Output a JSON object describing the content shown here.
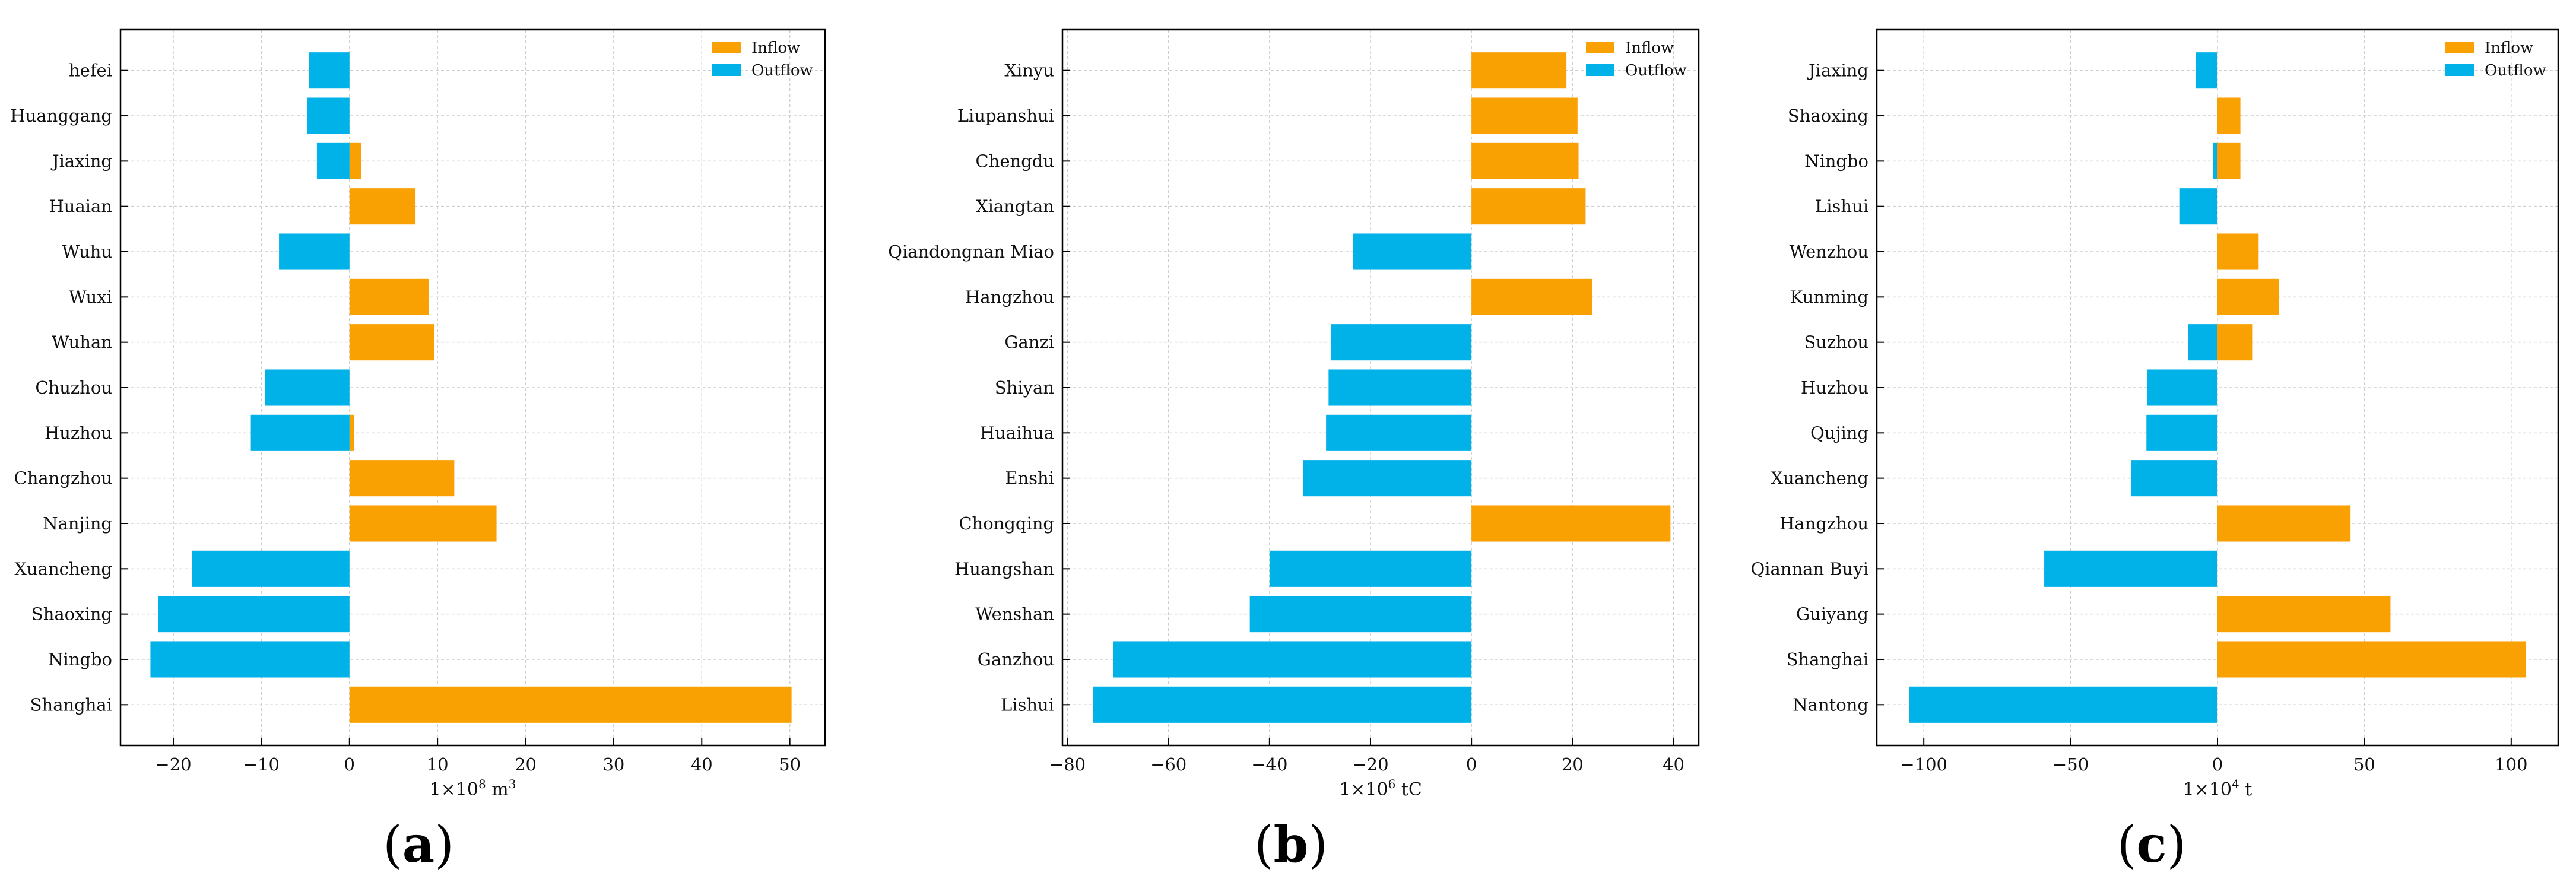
{
  "colors": {
    "inflow": "#f9a102",
    "outflow": "#00b2e8"
  },
  "chart_data": [
    {
      "panel": "a",
      "panel_label": "a",
      "type": "bar",
      "orientation": "horizontal",
      "xlabel": "1×10",
      "xlabel_sup": "8",
      "xlabel_unit": " m",
      "xlabel_unit_sup": "3",
      "xlim": [
        -26,
        54
      ],
      "xticks": [
        -20,
        -10,
        0,
        10,
        20,
        30,
        40,
        50
      ],
      "legend": [
        "Inflow",
        "Outflow"
      ],
      "legend_position": "top-right",
      "grid": true,
      "categories": [
        "hefei",
        "Huanggang",
        "Jiaxing",
        "Huaian",
        "Wuhu",
        "Wuxi",
        "Wuhan",
        "Chuzhou",
        "Huzhou",
        "Changzhou",
        "Nanjing",
        "Xuancheng",
        "Shaoxing",
        "Ningbo",
        "Shanghai"
      ],
      "series": [
        {
          "name": "Inflow",
          "values": [
            0,
            0,
            1.3,
            7.5,
            0,
            9,
            9.6,
            0,
            0.5,
            11.9,
            16.7,
            0,
            0,
            0,
            50.2
          ]
        },
        {
          "name": "Outflow",
          "values": [
            -4.6,
            -4.8,
            -3.7,
            0,
            -8,
            0,
            0,
            -9.6,
            -11.2,
            0,
            0,
            -17.9,
            -21.7,
            -22.6,
            0
          ]
        }
      ]
    },
    {
      "panel": "b",
      "panel_label": "b",
      "type": "bar",
      "orientation": "horizontal",
      "xlabel": "1×10",
      "xlabel_sup": "6",
      "xlabel_unit": " tC",
      "xlabel_unit_sup": "",
      "xlim": [
        -81,
        45
      ],
      "xticks": [
        -80,
        -60,
        -40,
        -20,
        0,
        20,
        40
      ],
      "legend": [
        "Inflow",
        "Outflow"
      ],
      "legend_position": "top-right",
      "grid": true,
      "categories": [
        "Xinyu",
        "Liupanshui",
        "Chengdu",
        "Xiangtan",
        "Qiandongnan Miao",
        "Hangzhou",
        "Ganzi",
        "Shiyan",
        "Huaihua",
        "Enshi",
        "Chongqing",
        "Huangshan",
        "Wenshan",
        "Ganzhou",
        "Lishui"
      ],
      "series": [
        {
          "name": "Inflow",
          "values": [
            18.8,
            21,
            21.2,
            22.6,
            0,
            23.9,
            0,
            0,
            0,
            0,
            39.4,
            0,
            0,
            0,
            0
          ]
        },
        {
          "name": "Outflow",
          "values": [
            0,
            0,
            0,
            0,
            -23.5,
            0,
            -27.8,
            -28.3,
            -28.8,
            -33.4,
            0,
            -40,
            -43.9,
            -71,
            -75
          ]
        }
      ]
    },
    {
      "panel": "c",
      "panel_label": "c",
      "type": "bar",
      "orientation": "horizontal",
      "xlabel": "1×10",
      "xlabel_sup": "4",
      "xlabel_unit": " t",
      "xlabel_unit_sup": "",
      "xlim": [
        -116,
        116
      ],
      "xticks": [
        -100,
        -50,
        0,
        50,
        100
      ],
      "legend": [
        "Inflow",
        "Outflow"
      ],
      "legend_position": "top-right",
      "grid": true,
      "categories": [
        "Jiaxing",
        "Shaoxing",
        "Ningbo",
        "Lishui",
        "Wenzhou",
        "Kunming",
        "Suzhou",
        "Huzhou",
        "Qujing",
        "Xuancheng",
        "Hangzhou",
        "Qiannan Buyi",
        "Guiyang",
        "Shanghai",
        "Nantong"
      ],
      "series": [
        {
          "name": "Inflow",
          "values": [
            0,
            7.8,
            7.8,
            0,
            14,
            21,
            11.8,
            0,
            0,
            0,
            45.3,
            0,
            58.9,
            105,
            0
          ]
        },
        {
          "name": "Outflow",
          "values": [
            -7.3,
            0,
            -1.5,
            -13,
            0,
            0,
            -10,
            -23.9,
            -24.2,
            -29.4,
            0,
            -59,
            0,
            0,
            -105
          ]
        }
      ]
    }
  ]
}
